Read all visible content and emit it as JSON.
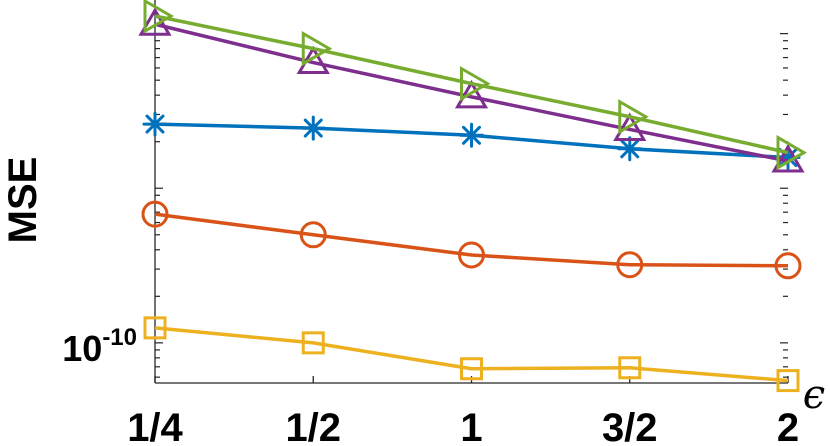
{
  "chart_data": {
    "type": "line",
    "categories": [
      "1/4",
      "1/2",
      "1",
      "3/2",
      "2"
    ],
    "ylabel": "MSE",
    "xlabel": "ϵ",
    "yscale": "log",
    "y_tick_label": {
      "base": "10",
      "exponent": "-10",
      "value": 1e-10
    },
    "ylim": [
      5.5e-11,
      1.38e-08
    ],
    "grid": false,
    "series": [
      {
        "marker": "triangle-right",
        "color": "#77AC30",
        "values": [
          1.3e-08,
          8e-09,
          4.75e-09,
          2.9e-09,
          1.7e-09
        ]
      },
      {
        "marker": "triangle-up",
        "color": "#7E2F8E",
        "values": [
          1.15e-08,
          6.5e-09,
          3.9e-09,
          2.4e-09,
          1.5e-09
        ]
      },
      {
        "marker": "asterisk",
        "color": "#0072BD",
        "values": [
          2.6e-09,
          2.45e-09,
          2.2e-09,
          1.8e-09,
          1.58e-09
        ]
      },
      {
        "marker": "circle",
        "color": "#D95319",
        "values": [
          6.8e-10,
          5e-10,
          3.7e-10,
          3.2e-10,
          3.15e-10
        ]
      },
      {
        "marker": "square",
        "color": "#EDB120",
        "values": [
          1.25e-10,
          1e-10,
          6.8e-11,
          6.9e-11,
          5.7e-11
        ]
      }
    ]
  }
}
